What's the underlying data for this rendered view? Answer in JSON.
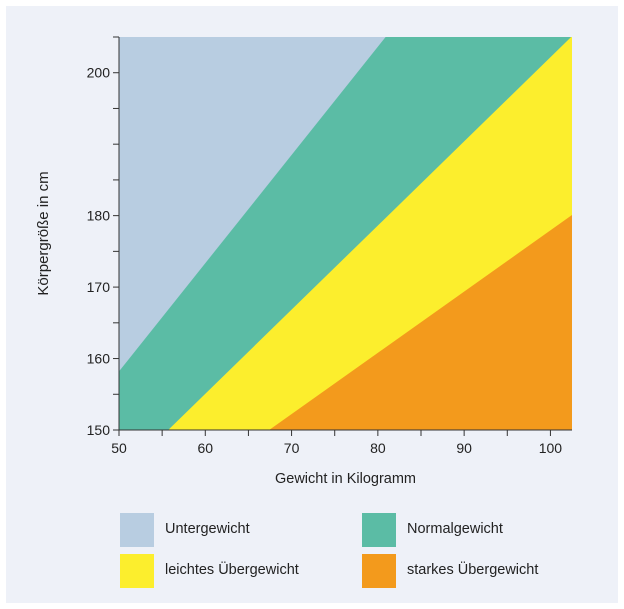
{
  "chart_data": {
    "type": "area",
    "xlabel": "Gewicht in Kilogramm",
    "ylabel": "Körpergröße in cm",
    "xlim": [
      50,
      102.5
    ],
    "ylim": [
      150,
      205
    ],
    "x_ticks": [
      50,
      60,
      70,
      80,
      90,
      100
    ],
    "y_ticks": [
      150,
      160,
      170,
      180,
      200
    ],
    "regions": [
      {
        "name": "Untergewicht",
        "color": "#b8cde1",
        "boundary": null
      },
      {
        "name": "Normalgewicht",
        "color": "#5bbca5",
        "boundary": [
          [
            50,
            158.2
          ],
          [
            80.9,
            205
          ]
        ]
      },
      {
        "name": "leichtes Übergewicht",
        "color": "#fcee2d",
        "boundary": [
          [
            55.7,
            150
          ],
          [
            102.4,
            205
          ]
        ]
      },
      {
        "name": "starkes Übergewicht",
        "color": "#f39a1c",
        "boundary": [
          [
            67.4,
            150
          ],
          [
            102.4,
            180
          ]
        ]
      }
    ],
    "legend": [
      {
        "label": "Untergewicht",
        "color": "#b8cde1"
      },
      {
        "label": "Normalgewicht",
        "color": "#5bbca5"
      },
      {
        "label": "leichtes Übergewicht",
        "color": "#fcee2d"
      },
      {
        "label": "starkes Übergewicht",
        "color": "#f39a1c"
      }
    ],
    "grid": false
  }
}
